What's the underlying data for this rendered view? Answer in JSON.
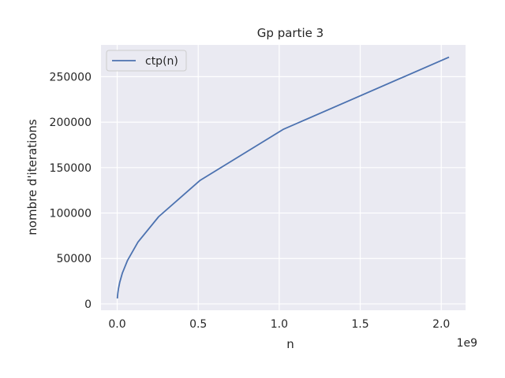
{
  "chart_data": {
    "type": "line",
    "title": "Gp partie 3",
    "xlabel": "n",
    "ylabel": "nombre d'iterations",
    "x_offset_label": "1e9",
    "xlim": [
      -0.1,
      2.15
    ],
    "ylim": [
      -7000,
      285000
    ],
    "x_ticks": [
      0.0,
      0.5,
      1.0,
      1.5,
      2.0
    ],
    "x_tick_labels": [
      "0.0",
      "0.5",
      "1.0",
      "1.5",
      "2.0"
    ],
    "y_ticks": [
      0,
      50000,
      100000,
      150000,
      200000,
      250000
    ],
    "y_tick_labels": [
      "0",
      "50000",
      "100000",
      "150000",
      "200000",
      "250000"
    ],
    "grid": true,
    "legend_position": "top-left",
    "series": [
      {
        "name": "ctp(n)",
        "color": "#4c72b0",
        "x": [
          0.001,
          0.002,
          0.004,
          0.008,
          0.016,
          0.032,
          0.064,
          0.128,
          0.256,
          0.512,
          1.024,
          2.048
        ],
        "y": [
          6000,
          8500,
          12000,
          17000,
          24000,
          34000,
          48000,
          68000,
          96000,
          136000,
          192000,
          271500
        ]
      }
    ]
  }
}
